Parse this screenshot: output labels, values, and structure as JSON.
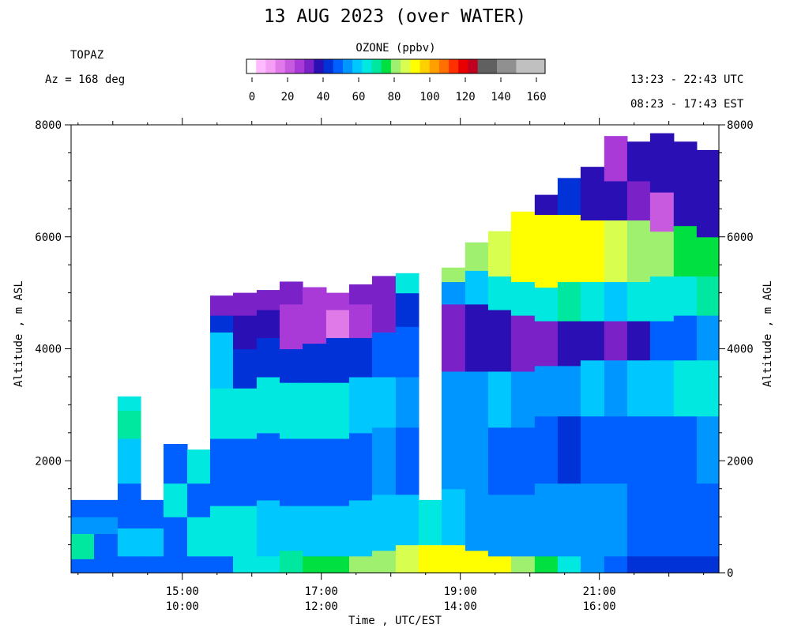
{
  "title": "13 AUG 2023 (over WATER)",
  "site": "TOPAZ",
  "azimuth_label": "Az = 168 deg",
  "utc_range": "13:23 - 22:43 UTC",
  "est_range": "08:23 - 17:43 EST",
  "colorbar": {
    "label": "OZONE (ppbv)",
    "ticks": [
      "0",
      "20",
      "40",
      "60",
      "80",
      "100",
      "120",
      "140",
      "160"
    ],
    "colors": [
      "#ffffff",
      "#ffbbff",
      "#f59ef5",
      "#e07ae9",
      "#c85ae0",
      "#a93ad8",
      "#7a22c8",
      "#2a10b4",
      "#0032d8",
      "#0060ff",
      "#0096ff",
      "#00c8ff",
      "#00e8e0",
      "#00e8a0",
      "#00e040",
      "#a0f070",
      "#d8ff50",
      "#ffff00",
      "#ffd000",
      "#ffa000",
      "#ff7000",
      "#ff3000",
      "#e80000",
      "#c00020",
      "#606060",
      "#606060",
      "#909090",
      "#909090",
      "#c0c0c0",
      "#c0c0c0",
      "#c0c0c0"
    ]
  },
  "chart_data": {
    "type": "heatmap",
    "title": "13 AUG 2023 (over WATER)",
    "xlabel": "Time , UTC/EST",
    "ylabel_left": "Altitude , m ASL",
    "ylabel_right": "Altitude , m AGL",
    "ylim": [
      0,
      8000
    ],
    "y_ticks_left": [
      "2000",
      "4000",
      "6000",
      "8000"
    ],
    "y_ticks_right": [
      "0",
      "2000",
      "4000",
      "6000",
      "8000"
    ],
    "x_ticks_utc": [
      "15:00",
      "17:00",
      "19:00",
      "21:00"
    ],
    "x_ticks_est": [
      "10:00",
      "12:00",
      "14:00",
      "16:00"
    ],
    "x_range_hours_utc": [
      13.4,
      22.72
    ],
    "profiles": [
      {
        "start": 13.4,
        "end": 13.73,
        "top": 1300,
        "layers": [
          [
            0,
            250,
            50
          ],
          [
            250,
            700,
            70
          ],
          [
            700,
            1000,
            56
          ],
          [
            1000,
            1300,
            50
          ]
        ]
      },
      {
        "start": 13.73,
        "end": 14.07,
        "top": 1300,
        "layers": [
          [
            0,
            250,
            50
          ],
          [
            250,
            700,
            48
          ],
          [
            700,
            1000,
            56
          ],
          [
            1000,
            1300,
            50
          ]
        ]
      },
      {
        "start": 14.07,
        "end": 14.4,
        "top": 3150,
        "layers": [
          [
            0,
            300,
            50
          ],
          [
            300,
            800,
            58
          ],
          [
            800,
            1600,
            50
          ],
          [
            1600,
            2400,
            60
          ],
          [
            2400,
            2900,
            68
          ],
          [
            2900,
            3150,
            62
          ]
        ]
      },
      {
        "start": 14.4,
        "end": 14.73,
        "top": 1300,
        "layers": [
          [
            0,
            300,
            50
          ],
          [
            300,
            800,
            60
          ],
          [
            800,
            1300,
            50
          ]
        ]
      },
      {
        "start": 14.73,
        "end": 15.07,
        "top": 2300,
        "layers": [
          [
            0,
            400,
            50
          ],
          [
            400,
            1000,
            48
          ],
          [
            1000,
            1600,
            62
          ],
          [
            1600,
            2000,
            50
          ],
          [
            2000,
            2300,
            48
          ]
        ]
      },
      {
        "start": 15.07,
        "end": 15.4,
        "top": 2200,
        "layers": [
          [
            0,
            300,
            50
          ],
          [
            300,
            1000,
            62
          ],
          [
            1000,
            1600,
            48
          ],
          [
            1600,
            2200,
            62
          ]
        ]
      },
      {
        "start": 15.4,
        "end": 15.73,
        "top": 4950,
        "layers": [
          [
            0,
            300,
            50
          ],
          [
            300,
            1200,
            62
          ],
          [
            1200,
            2400,
            48
          ],
          [
            2400,
            3300,
            66
          ],
          [
            3300,
            4300,
            58
          ],
          [
            4300,
            4600,
            46
          ],
          [
            4600,
            4950,
            36
          ]
        ]
      },
      {
        "start": 15.73,
        "end": 16.07,
        "top": 5000,
        "layers": [
          [
            0,
            300,
            66
          ],
          [
            300,
            1200,
            62
          ],
          [
            1200,
            2400,
            48
          ],
          [
            2400,
            3300,
            62
          ],
          [
            3300,
            4000,
            44
          ],
          [
            4000,
            4600,
            40
          ],
          [
            4600,
            5000,
            36
          ]
        ]
      },
      {
        "start": 16.07,
        "end": 16.4,
        "top": 5050,
        "layers": [
          [
            0,
            300,
            66
          ],
          [
            300,
            1300,
            60
          ],
          [
            1300,
            2500,
            50
          ],
          [
            2500,
            3500,
            64
          ],
          [
            3500,
            4200,
            44
          ],
          [
            4200,
            4700,
            38
          ],
          [
            4700,
            5050,
            34
          ]
        ]
      },
      {
        "start": 16.4,
        "end": 16.73,
        "top": 5200,
        "layers": [
          [
            0,
            400,
            70
          ],
          [
            400,
            1200,
            60
          ],
          [
            1200,
            2400,
            48
          ],
          [
            2400,
            3400,
            66
          ],
          [
            3400,
            4000,
            44
          ],
          [
            4000,
            4800,
            26
          ],
          [
            4800,
            5200,
            34
          ]
        ]
      },
      {
        "start": 16.73,
        "end": 17.07,
        "top": 5100,
        "layers": [
          [
            0,
            300,
            74
          ],
          [
            300,
            1200,
            60
          ],
          [
            1200,
            2400,
            48
          ],
          [
            2400,
            3400,
            64
          ],
          [
            3400,
            4100,
            44
          ],
          [
            4100,
            4800,
            26
          ],
          [
            4800,
            5100,
            30
          ]
        ]
      },
      {
        "start": 17.07,
        "end": 17.4,
        "top": 5000,
        "layers": [
          [
            0,
            300,
            76
          ],
          [
            300,
            1200,
            60
          ],
          [
            1200,
            2400,
            50
          ],
          [
            2400,
            3400,
            62
          ],
          [
            3400,
            4200,
            44
          ],
          [
            4200,
            4700,
            16
          ],
          [
            4700,
            5000,
            26
          ]
        ]
      },
      {
        "start": 17.4,
        "end": 17.73,
        "top": 5150,
        "layers": [
          [
            0,
            300,
            78
          ],
          [
            300,
            1300,
            60
          ],
          [
            1300,
            2500,
            50
          ],
          [
            2500,
            3500,
            60
          ],
          [
            3500,
            4200,
            44
          ],
          [
            4200,
            4800,
            28
          ],
          [
            4800,
            5150,
            34
          ]
        ]
      },
      {
        "start": 17.73,
        "end": 18.07,
        "top": 5300,
        "layers": [
          [
            0,
            400,
            78
          ],
          [
            400,
            1400,
            60
          ],
          [
            1400,
            2600,
            52
          ],
          [
            2600,
            3500,
            58
          ],
          [
            3500,
            4300,
            48
          ],
          [
            4300,
            5300,
            34
          ]
        ]
      },
      {
        "start": 18.07,
        "end": 18.4,
        "top": 5350,
        "layers": [
          [
            0,
            500,
            84
          ],
          [
            500,
            1400,
            60
          ],
          [
            1400,
            2600,
            50
          ],
          [
            2600,
            3500,
            56
          ],
          [
            3500,
            4400,
            50
          ],
          [
            4400,
            5000,
            44
          ],
          [
            5000,
            5350,
            66
          ]
        ]
      },
      {
        "start": 18.4,
        "end": 18.73,
        "top": 1300,
        "layers": [
          [
            0,
            500,
            88
          ],
          [
            500,
            1300,
            62
          ]
        ]
      },
      {
        "start": 18.73,
        "end": 19.07,
        "top": 5450,
        "layers": [
          [
            0,
            500,
            88
          ],
          [
            500,
            1500,
            58
          ],
          [
            1500,
            2600,
            52
          ],
          [
            2600,
            3600,
            54
          ],
          [
            3600,
            4800,
            36
          ],
          [
            4800,
            5200,
            54
          ],
          [
            5200,
            5450,
            80
          ]
        ]
      },
      {
        "start": 19.07,
        "end": 19.4,
        "top": 5900,
        "layers": [
          [
            0,
            400,
            88
          ],
          [
            400,
            1400,
            56
          ],
          [
            1400,
            2600,
            52
          ],
          [
            2600,
            3600,
            56
          ],
          [
            3600,
            4800,
            38
          ],
          [
            4800,
            5400,
            58
          ],
          [
            5400,
            5900,
            82
          ]
        ]
      },
      {
        "start": 19.4,
        "end": 19.73,
        "top": 6100,
        "layers": [
          [
            0,
            300,
            88
          ],
          [
            300,
            1400,
            54
          ],
          [
            1400,
            2600,
            50
          ],
          [
            2600,
            3600,
            58
          ],
          [
            3600,
            4700,
            40
          ],
          [
            4700,
            5300,
            62
          ],
          [
            5300,
            6100,
            86
          ]
        ]
      },
      {
        "start": 19.73,
        "end": 20.07,
        "top": 6450,
        "layers": [
          [
            0,
            300,
            80
          ],
          [
            300,
            1400,
            52
          ],
          [
            1400,
            2600,
            50
          ],
          [
            2600,
            3600,
            56
          ],
          [
            3600,
            4600,
            36
          ],
          [
            4600,
            5200,
            64
          ],
          [
            5200,
            6450,
            92
          ]
        ]
      },
      {
        "start": 20.07,
        "end": 20.4,
        "top": 6750,
        "layers": [
          [
            0,
            300,
            74
          ],
          [
            300,
            1600,
            52
          ],
          [
            1600,
            2800,
            48
          ],
          [
            2800,
            3700,
            52
          ],
          [
            3700,
            4500,
            32
          ],
          [
            4500,
            5100,
            66
          ],
          [
            5100,
            6400,
            92
          ],
          [
            6400,
            6750,
            40
          ]
        ]
      },
      {
        "start": 20.4,
        "end": 20.73,
        "top": 7050,
        "layers": [
          [
            0,
            300,
            64
          ],
          [
            300,
            1600,
            52
          ],
          [
            1600,
            2800,
            46
          ],
          [
            2800,
            3700,
            54
          ],
          [
            3700,
            4500,
            38
          ],
          [
            4500,
            5200,
            72
          ],
          [
            5200,
            6400,
            88
          ],
          [
            6400,
            7050,
            44
          ]
        ]
      },
      {
        "start": 20.73,
        "end": 21.07,
        "top": 7250,
        "layers": [
          [
            0,
            300,
            56
          ],
          [
            300,
            1600,
            52
          ],
          [
            1600,
            2800,
            48
          ],
          [
            2800,
            3800,
            58
          ],
          [
            3800,
            4500,
            40
          ],
          [
            4500,
            5200,
            64
          ],
          [
            5200,
            6300,
            88
          ],
          [
            6300,
            7250,
            40
          ]
        ]
      },
      {
        "start": 21.07,
        "end": 21.4,
        "top": 7800,
        "layers": [
          [
            0,
            300,
            50
          ],
          [
            300,
            1600,
            52
          ],
          [
            1600,
            2800,
            50
          ],
          [
            2800,
            3800,
            56
          ],
          [
            3800,
            4500,
            36
          ],
          [
            4500,
            5200,
            60
          ],
          [
            5200,
            6300,
            84
          ],
          [
            6300,
            7000,
            40
          ],
          [
            7000,
            7800,
            30
          ]
        ]
      },
      {
        "start": 21.4,
        "end": 21.73,
        "top": 7700,
        "layers": [
          [
            0,
            300,
            46
          ],
          [
            300,
            1600,
            50
          ],
          [
            1600,
            2800,
            50
          ],
          [
            2800,
            3800,
            58
          ],
          [
            3800,
            4500,
            40
          ],
          [
            4500,
            5200,
            62
          ],
          [
            5200,
            6300,
            80
          ],
          [
            6300,
            7000,
            36
          ],
          [
            7000,
            7700,
            40
          ]
        ]
      },
      {
        "start": 21.73,
        "end": 22.07,
        "top": 7850,
        "layers": [
          [
            0,
            300,
            44
          ],
          [
            300,
            1600,
            50
          ],
          [
            1600,
            2800,
            50
          ],
          [
            2800,
            3800,
            60
          ],
          [
            3800,
            4500,
            50
          ],
          [
            4500,
            5300,
            64
          ],
          [
            5300,
            6100,
            78
          ],
          [
            6100,
            6800,
            24
          ],
          [
            6800,
            7850,
            40
          ]
        ]
      },
      {
        "start": 22.07,
        "end": 22.4,
        "top": 7700,
        "layers": [
          [
            0,
            300,
            44
          ],
          [
            300,
            1600,
            50
          ],
          [
            1600,
            2800,
            50
          ],
          [
            2800,
            3800,
            62
          ],
          [
            3800,
            4600,
            50
          ],
          [
            4600,
            5300,
            66
          ],
          [
            5300,
            6200,
            76
          ],
          [
            6200,
            7700,
            40
          ]
        ]
      },
      {
        "start": 22.4,
        "end": 22.72,
        "top": 7550,
        "layers": [
          [
            0,
            300,
            46
          ],
          [
            300,
            1600,
            50
          ],
          [
            1600,
            2800,
            52
          ],
          [
            2800,
            3800,
            64
          ],
          [
            3800,
            4600,
            52
          ],
          [
            4600,
            5300,
            68
          ],
          [
            5300,
            6000,
            74
          ],
          [
            6000,
            7550,
            40
          ]
        ]
      }
    ]
  }
}
